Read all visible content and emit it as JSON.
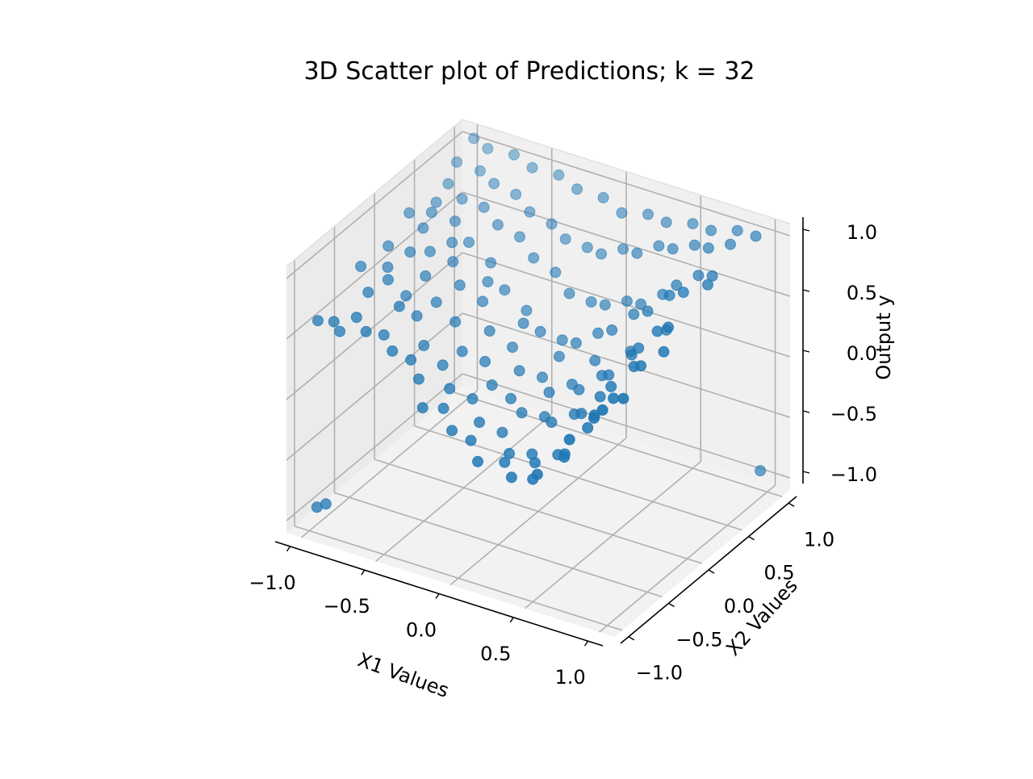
{
  "chart_data": {
    "type": "scatter",
    "title": "3D Scatter plot of Predictions; k = 32",
    "xlabel": "X1 Values",
    "ylabel": "X2 Values",
    "zlabel": "Output y",
    "xlim": [
      -1.1,
      1.1
    ],
    "ylim": [
      -1.1,
      1.1
    ],
    "zlim": [
      -1.1,
      1.1
    ],
    "xticks": [
      "−1.0",
      "−0.5",
      "0.0",
      "0.5",
      "1.0"
    ],
    "yticks": [
      "−1.0",
      "−0.5",
      "0.0",
      "0.5",
      "1.0"
    ],
    "zticks": [
      "−1.0",
      "−0.5",
      "0.0",
      "0.5",
      "1.0"
    ],
    "grid": true,
    "marker_color": "#1f77b4",
    "pane_color": "#f2f2f2",
    "grid_color": "#b0b0b0",
    "points_note_unused": null,
    "series": [
      {
        "points": [
          [
            -0.97,
            -0.95,
            0.62
          ],
          [
            -0.9,
            -0.88,
            0.6
          ],
          [
            -0.85,
            -0.9,
            0.55
          ],
          [
            -0.78,
            -0.82,
            0.65
          ],
          [
            -0.7,
            -0.85,
            0.58
          ],
          [
            -0.65,
            -0.72,
            0.5
          ],
          [
            -0.82,
            -0.6,
            0.72
          ],
          [
            -0.74,
            -0.5,
            0.8
          ],
          [
            -0.6,
            -0.62,
            0.7
          ],
          [
            -0.55,
            -0.8,
            0.45
          ],
          [
            -0.48,
            -0.7,
            0.35
          ],
          [
            -0.4,
            -0.75,
            0.25
          ],
          [
            -0.32,
            -0.85,
            0.1
          ],
          [
            -0.25,
            -0.72,
            0.05
          ],
          [
            -0.15,
            -0.8,
            -0.05
          ],
          [
            -0.05,
            -0.75,
            -0.12
          ],
          [
            0.05,
            -0.85,
            -0.2
          ],
          [
            0.15,
            -0.7,
            -0.25
          ],
          [
            0.25,
            -0.8,
            -0.28
          ],
          [
            0.35,
            -0.72,
            -0.3
          ],
          [
            0.45,
            -0.85,
            -0.15
          ],
          [
            0.55,
            -0.7,
            -0.05
          ],
          [
            0.65,
            -0.82,
            0.2
          ],
          [
            0.75,
            -0.7,
            0.35
          ],
          [
            0.85,
            -0.78,
            0.5
          ],
          [
            0.92,
            -0.65,
            0.55
          ],
          [
            0.8,
            -0.55,
            0.45
          ],
          [
            0.7,
            -0.6,
            0.3
          ],
          [
            0.6,
            -0.5,
            0.1
          ],
          [
            0.5,
            -0.6,
            -0.1
          ],
          [
            0.4,
            -0.5,
            -0.2
          ],
          [
            0.3,
            -0.6,
            -0.25
          ],
          [
            0.2,
            -0.45,
            -0.3
          ],
          [
            0.1,
            -0.55,
            -0.28
          ],
          [
            0.0,
            -0.45,
            -0.2
          ],
          [
            -0.1,
            -0.55,
            -0.1
          ],
          [
            -0.2,
            -0.45,
            0.0
          ],
          [
            -0.3,
            -0.55,
            0.1
          ],
          [
            -0.4,
            -0.45,
            0.2
          ],
          [
            -0.5,
            -0.5,
            0.35
          ],
          [
            -0.6,
            -0.4,
            0.5
          ],
          [
            -0.7,
            -0.35,
            0.6
          ],
          [
            -0.85,
            -0.3,
            0.75
          ],
          [
            -0.95,
            -0.45,
            0.8
          ],
          [
            -0.9,
            -0.2,
            0.85
          ],
          [
            -0.78,
            -0.15,
            0.82
          ],
          [
            -0.65,
            -0.2,
            0.7
          ],
          [
            -0.55,
            -0.25,
            0.55
          ],
          [
            -0.45,
            -0.2,
            0.4
          ],
          [
            -0.35,
            -0.3,
            0.25
          ],
          [
            -0.25,
            -0.2,
            0.15
          ],
          [
            -0.15,
            -0.3,
            0.05
          ],
          [
            -0.05,
            -0.25,
            -0.05
          ],
          [
            0.05,
            -0.3,
            -0.1
          ],
          [
            0.15,
            -0.2,
            -0.15
          ],
          [
            0.25,
            -0.3,
            -0.1
          ],
          [
            0.35,
            -0.2,
            -0.05
          ],
          [
            0.45,
            -0.3,
            0.05
          ],
          [
            0.55,
            -0.25,
            0.2
          ],
          [
            0.65,
            -0.3,
            0.35
          ],
          [
            0.75,
            -0.2,
            0.5
          ],
          [
            0.85,
            -0.3,
            0.6
          ],
          [
            0.95,
            -0.2,
            0.7
          ],
          [
            0.9,
            -0.05,
            0.8
          ],
          [
            0.8,
            0.0,
            0.7
          ],
          [
            0.7,
            -0.05,
            0.55
          ],
          [
            0.6,
            0.05,
            0.4
          ],
          [
            0.5,
            -0.05,
            0.25
          ],
          [
            0.4,
            0.05,
            0.15
          ],
          [
            0.3,
            -0.05,
            0.05
          ],
          [
            0.2,
            0.05,
            0.0
          ],
          [
            0.1,
            -0.05,
            -0.05
          ],
          [
            0.0,
            0.05,
            -0.02
          ],
          [
            -0.1,
            -0.05,
            0.05
          ],
          [
            -0.2,
            0.05,
            0.15
          ],
          [
            -0.3,
            -0.05,
            0.3
          ],
          [
            -0.4,
            0.05,
            0.45
          ],
          [
            -0.5,
            -0.05,
            0.6
          ],
          [
            -0.6,
            0.05,
            0.7
          ],
          [
            -0.7,
            -0.05,
            0.8
          ],
          [
            -0.8,
            0.05,
            0.9
          ],
          [
            -0.92,
            0.1,
            0.95
          ],
          [
            -0.85,
            0.25,
            0.9
          ],
          [
            -0.72,
            0.3,
            0.85
          ],
          [
            -0.6,
            0.25,
            0.75
          ],
          [
            -0.48,
            0.3,
            0.6
          ],
          [
            -0.36,
            0.25,
            0.45
          ],
          [
            -0.24,
            0.3,
            0.3
          ],
          [
            -0.12,
            0.25,
            0.2
          ],
          [
            0.0,
            0.3,
            0.15
          ],
          [
            0.12,
            0.25,
            0.2
          ],
          [
            0.24,
            0.3,
            0.3
          ],
          [
            0.36,
            0.25,
            0.4
          ],
          [
            0.48,
            0.3,
            0.55
          ],
          [
            0.6,
            0.25,
            0.65
          ],
          [
            0.72,
            0.3,
            0.8
          ],
          [
            0.84,
            0.25,
            0.9
          ],
          [
            0.95,
            0.35,
            0.95
          ],
          [
            0.9,
            0.5,
            0.92
          ],
          [
            0.78,
            0.55,
            0.85
          ],
          [
            0.66,
            0.5,
            0.75
          ],
          [
            0.54,
            0.55,
            0.6
          ],
          [
            0.42,
            0.5,
            0.5
          ],
          [
            0.3,
            0.55,
            0.45
          ],
          [
            0.18,
            0.5,
            0.4
          ],
          [
            0.06,
            0.55,
            0.35
          ],
          [
            -0.06,
            0.5,
            0.4
          ],
          [
            -0.18,
            0.55,
            0.5
          ],
          [
            -0.3,
            0.5,
            0.6
          ],
          [
            -0.42,
            0.55,
            0.7
          ],
          [
            -0.54,
            0.5,
            0.78
          ],
          [
            -0.66,
            0.55,
            0.85
          ],
          [
            -0.78,
            0.5,
            0.9
          ],
          [
            -0.9,
            0.55,
            0.95
          ],
          [
            -0.95,
            0.75,
            1.0
          ],
          [
            -0.82,
            0.8,
            0.95
          ],
          [
            -0.7,
            0.75,
            0.92
          ],
          [
            -0.58,
            0.8,
            0.85
          ],
          [
            -0.46,
            0.75,
            0.78
          ],
          [
            -0.34,
            0.8,
            0.7
          ],
          [
            -0.22,
            0.75,
            0.65
          ],
          [
            -0.1,
            0.8,
            0.6
          ],
          [
            0.02,
            0.75,
            0.62
          ],
          [
            0.14,
            0.8,
            0.68
          ],
          [
            0.26,
            0.75,
            0.72
          ],
          [
            0.38,
            0.8,
            0.8
          ],
          [
            0.5,
            0.75,
            0.85
          ],
          [
            0.62,
            0.8,
            0.9
          ],
          [
            0.74,
            0.75,
            0.95
          ],
          [
            0.86,
            0.8,
            1.0
          ],
          [
            0.95,
            0.95,
            1.02
          ],
          [
            0.8,
            1.0,
            0.98
          ],
          [
            0.65,
            0.95,
            0.95
          ],
          [
            0.5,
            1.0,
            0.92
          ],
          [
            0.35,
            0.95,
            0.9
          ],
          [
            0.2,
            1.0,
            0.88
          ],
          [
            0.05,
            0.95,
            0.86
          ],
          [
            -0.1,
            1.0,
            0.9
          ],
          [
            -0.25,
            0.95,
            0.94
          ],
          [
            -0.4,
            1.0,
            0.97
          ],
          [
            -0.55,
            0.95,
            1.0
          ],
          [
            -0.7,
            1.0,
            1.02
          ],
          [
            -0.85,
            0.95,
            1.04
          ],
          [
            -0.97,
            1.0,
            1.05
          ],
          [
            -0.9,
            0.4,
            0.88
          ],
          [
            -0.66,
            0.15,
            0.78
          ],
          [
            -0.42,
            0.15,
            0.55
          ],
          [
            -0.18,
            0.15,
            0.3
          ],
          [
            0.06,
            0.15,
            0.12
          ],
          [
            0.3,
            0.15,
            0.18
          ],
          [
            0.54,
            0.15,
            0.35
          ],
          [
            0.78,
            0.15,
            0.62
          ],
          [
            -0.96,
            -0.98,
            -0.9
          ],
          [
            -0.9,
            -0.98,
            -0.85
          ],
          [
            0.97,
            0.97,
            -0.92
          ]
        ]
      }
    ]
  }
}
